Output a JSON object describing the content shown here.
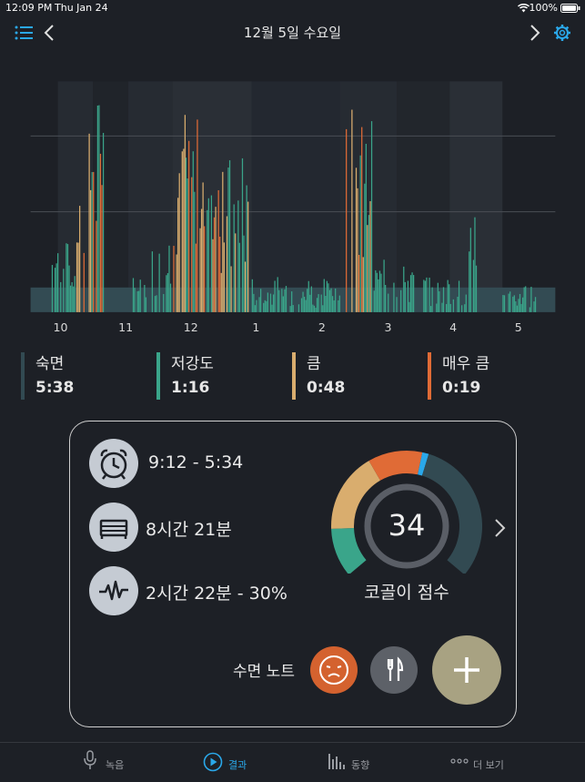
{
  "status": {
    "time": "12:09 PM",
    "date": "Thu Jan 24",
    "battery": "100%"
  },
  "header": {
    "title": "12월 5일 수요일"
  },
  "chart_data": {
    "type": "area",
    "x_ticks": [
      "10",
      "11",
      "12",
      "1",
      "2",
      "3",
      "4",
      "5"
    ],
    "series": [
      {
        "name": "숙면",
        "color": "#324a52"
      },
      {
        "name": "저강도",
        "color": "#3aa58a"
      },
      {
        "name": "큼",
        "color": "#d9ad6e"
      },
      {
        "name": "매우 큼",
        "color": "#e06b36"
      }
    ]
  },
  "legend": [
    {
      "label": "숙면",
      "value": "5:38",
      "color": "#324a52"
    },
    {
      "label": "저강도",
      "value": "1:16",
      "color": "#3aa58a"
    },
    {
      "label": "큼",
      "value": "0:48",
      "color": "#d9ad6e"
    },
    {
      "label": "매우 큼",
      "value": "0:19",
      "color": "#e06b36"
    }
  ],
  "summary": {
    "time_range": "9:12 - 5:34",
    "duration": "8시간 21분",
    "snore_time": "2시간 22분 - 30%",
    "score": "34",
    "score_label": "코골이 점수",
    "notes_label": "수면 노트"
  },
  "tabs": [
    {
      "label": "녹음",
      "icon": "microphone-icon"
    },
    {
      "label": "결과",
      "icon": "play-circle-icon"
    },
    {
      "label": "동향",
      "icon": "bar-chart-icon"
    },
    {
      "label": "더 보기",
      "icon": "more-dots-icon"
    }
  ]
}
